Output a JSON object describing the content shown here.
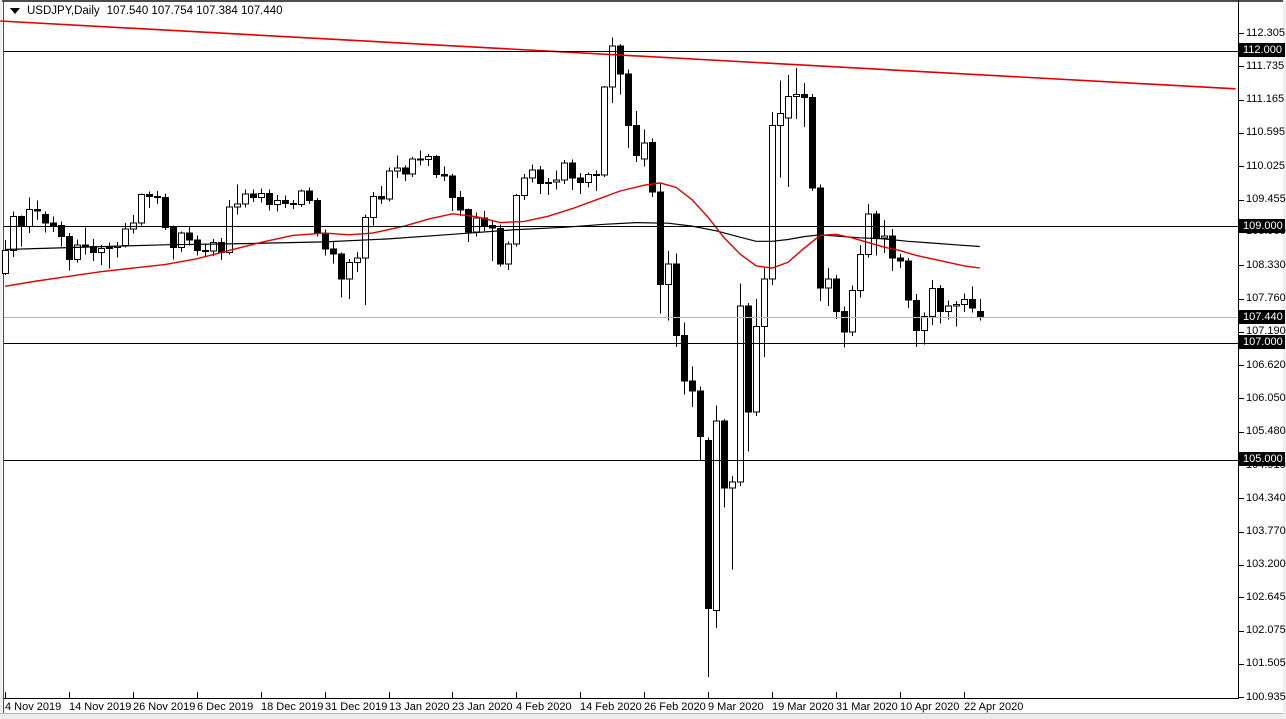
{
  "window": {
    "symbol_period": "USDJPY,Daily",
    "ohlc_line": "107.540 107.754 107.384 107.440"
  },
  "chart_data": {
    "type": "candlestick",
    "symbol": "USDJPY",
    "timeframe": "Daily",
    "title": "USDJPY,Daily",
    "current_bar": {
      "open": "107.540",
      "high": "107.754",
      "low": "107.384",
      "close": "107.440"
    },
    "colors": {
      "bull_body": "#ffffff",
      "bear_body": "#000000",
      "wick": "#000000",
      "ma_fast": "#e00000",
      "ma_slow": "#000000",
      "trendline": "#e00000",
      "current_price_line": "#b8b8b8",
      "level_line": "#000000",
      "level_label_bg": "#000000",
      "level_label_text": "#ffffff",
      "axis_line": "#000000",
      "background": "#ffffff"
    },
    "y_axis": {
      "tick_labels": [
        "112.305",
        "111.735",
        "111.165",
        "110.595",
        "110.025",
        "109.455",
        "108.900",
        "108.330",
        "107.760",
        "107.190",
        "106.620",
        "106.050",
        "105.480",
        "104.910",
        "104.340",
        "103.770",
        "103.200",
        "102.645",
        "102.075",
        "101.505",
        "100.935"
      ],
      "range_top": 112.87,
      "range_bottom": 100.56
    },
    "x_axis": {
      "labels": [
        "4 Nov 2019",
        "14 Nov 2019",
        "26 Nov 2019",
        "6 Dec 2019",
        "18 Dec 2019",
        "31 Dec 2019",
        "13 Jan 2020",
        "23 Jan 2020",
        "4 Feb 2020",
        "14 Feb 2020",
        "26 Feb 2020",
        "9 Mar 2020",
        "19 Mar 2020",
        "31 Mar 2020",
        "10 Apr 2020",
        "22 Apr 2020"
      ],
      "bars_per_tick": 8
    },
    "horizontal_levels": [
      {
        "label": "112.000",
        "price": 112.0
      },
      {
        "label": "109.000",
        "price": 109.0
      },
      {
        "label": "107.000",
        "price": 107.0
      },
      {
        "label": "105.000",
        "price": 105.0
      }
    ],
    "current_price_level": {
      "label": "107.440",
      "price": 107.44
    },
    "trendline": {
      "x_start_bar": -0.6,
      "price_start": 112.51,
      "x_end_bar": 154.0,
      "price_end": 111.35
    },
    "candles": [
      [
        "4 Nov 2019",
        108.19,
        108.76,
        108.16,
        108.58
      ],
      [
        "5 Nov 2019",
        108.58,
        109.25,
        108.47,
        109.16
      ],
      [
        "6 Nov 2019",
        109.16,
        109.18,
        108.65,
        108.99
      ],
      [
        "7 Nov 2019",
        108.99,
        109.49,
        108.88,
        109.28
      ],
      [
        "8 Nov 2019",
        109.28,
        109.44,
        109.1,
        109.26
      ],
      [
        "11 Nov 2019",
        109.2,
        109.25,
        108.89,
        109.05
      ],
      [
        "12 Nov 2019",
        109.05,
        109.16,
        108.9,
        109.01
      ],
      [
        "13 Nov 2019",
        109.01,
        109.08,
        108.65,
        108.82
      ],
      [
        "14 Nov 2019",
        108.82,
        108.88,
        108.24,
        108.43
      ],
      [
        "15 Nov 2019",
        108.43,
        108.77,
        108.38,
        108.68
      ],
      [
        "18 Nov 2019",
        108.68,
        108.98,
        108.51,
        108.65
      ],
      [
        "19 Nov 2019",
        108.65,
        108.78,
        108.4,
        108.55
      ],
      [
        "20 Nov 2019",
        108.55,
        108.68,
        108.33,
        108.62
      ],
      [
        "21 Nov 2019",
        108.62,
        108.72,
        108.27,
        108.63
      ],
      [
        "22 Nov 2019",
        108.63,
        108.73,
        108.46,
        108.66
      ],
      [
        "25 Nov 2019",
        108.67,
        109.05,
        108.63,
        108.95
      ],
      [
        "26 Nov 2019",
        108.95,
        109.19,
        108.87,
        109.05
      ],
      [
        "27 Nov 2019",
        109.05,
        109.56,
        109.01,
        109.54
      ],
      [
        "28 Nov 2019",
        109.54,
        109.59,
        109.31,
        109.51
      ],
      [
        "29 Nov 2019",
        109.51,
        109.6,
        109.38,
        109.49
      ],
      [
        "2 Dec 2019",
        109.49,
        109.56,
        108.93,
        108.98
      ],
      [
        "3 Dec 2019",
        108.98,
        109.01,
        108.43,
        108.63
      ],
      [
        "4 Dec 2019",
        108.63,
        108.91,
        108.56,
        108.88
      ],
      [
        "5 Dec 2019",
        108.88,
        108.99,
        108.67,
        108.76
      ],
      [
        "6 Dec 2019",
        108.76,
        108.84,
        108.5,
        108.58
      ],
      [
        "9 Dec 2019",
        108.58,
        108.7,
        108.47,
        108.57
      ],
      [
        "10 Dec 2019",
        108.57,
        108.78,
        108.49,
        108.72
      ],
      [
        "11 Dec 2019",
        108.72,
        108.8,
        108.42,
        108.55
      ],
      [
        "12 Dec 2019",
        108.55,
        109.45,
        108.51,
        109.33
      ],
      [
        "13 Dec 2019",
        109.33,
        109.71,
        109.2,
        109.38
      ],
      [
        "16 Dec 2019",
        109.38,
        109.63,
        109.32,
        109.55
      ],
      [
        "17 Dec 2019",
        109.55,
        109.63,
        109.41,
        109.49
      ],
      [
        "18 Dec 2019",
        109.49,
        109.64,
        109.4,
        109.56
      ],
      [
        "19 Dec 2019",
        109.56,
        109.63,
        109.27,
        109.37
      ],
      [
        "20 Dec 2019",
        109.37,
        109.53,
        109.25,
        109.44
      ],
      [
        "23 Dec 2019",
        109.44,
        109.52,
        109.31,
        109.39
      ],
      [
        "24 Dec 2019",
        109.39,
        109.45,
        109.29,
        109.37
      ],
      [
        "26 Dec 2019",
        109.37,
        109.63,
        109.33,
        109.6
      ],
      [
        "27 Dec 2019",
        109.6,
        109.66,
        109.38,
        109.44
      ],
      [
        "30 Dec 2019",
        109.44,
        109.48,
        108.82,
        108.87
      ],
      [
        "31 Dec 2019",
        108.87,
        108.94,
        108.5,
        108.61
      ],
      [
        "2 Jan 2020",
        108.61,
        108.73,
        108.36,
        108.52
      ],
      [
        "3 Jan 2020",
        108.52,
        108.55,
        107.78,
        108.09
      ],
      [
        "6 Jan 2020",
        108.09,
        108.44,
        107.75,
        108.38
      ],
      [
        "7 Jan 2020",
        108.38,
        108.56,
        108.21,
        108.45
      ],
      [
        "8 Jan 2020",
        108.45,
        109.2,
        107.65,
        109.15
      ],
      [
        "9 Jan 2020",
        109.15,
        109.58,
        109.01,
        109.51
      ],
      [
        "10 Jan 2020",
        109.51,
        109.69,
        109.38,
        109.46
      ],
      [
        "13 Jan 2020",
        109.46,
        110.0,
        109.42,
        109.94
      ],
      [
        "14 Jan 2020",
        109.94,
        110.21,
        109.82,
        109.99
      ],
      [
        "15 Jan 2020",
        109.99,
        110.04,
        109.77,
        109.89
      ],
      [
        "16 Jan 2020",
        109.89,
        110.18,
        109.84,
        110.15
      ],
      [
        "17 Jan 2020",
        110.15,
        110.29,
        110.04,
        110.14
      ],
      [
        "20 Jan 2020",
        110.14,
        110.23,
        110.03,
        110.19
      ],
      [
        "21 Jan 2020",
        110.19,
        110.22,
        109.82,
        109.88
      ],
      [
        "22 Jan 2020",
        109.88,
        110.02,
        109.77,
        109.86
      ],
      [
        "23 Jan 2020",
        109.86,
        109.89,
        109.26,
        109.49
      ],
      [
        "24 Jan 2020",
        109.49,
        109.6,
        109.17,
        109.28
      ],
      [
        "27 Jan 2020",
        109.28,
        109.3,
        108.73,
        108.9
      ],
      [
        "28 Jan 2020",
        108.9,
        109.23,
        108.82,
        109.14
      ],
      [
        "29 Jan 2020",
        109.14,
        109.26,
        108.92,
        109.01
      ],
      [
        "30 Jan 2020",
        109.01,
        109.1,
        108.4,
        108.97
      ],
      [
        "31 Jan 2020",
        108.96,
        109.03,
        108.31,
        108.35
      ],
      [
        "3 Feb 2020",
        108.35,
        108.74,
        108.25,
        108.69
      ],
      [
        "4 Feb 2020",
        108.69,
        109.55,
        108.65,
        109.52
      ],
      [
        "5 Feb 2020",
        109.52,
        109.89,
        109.45,
        109.82
      ],
      [
        "6 Feb 2020",
        109.82,
        110.05,
        109.75,
        109.96
      ],
      [
        "7 Feb 2020",
        109.96,
        110.03,
        109.55,
        109.73
      ],
      [
        "10 Feb 2020",
        109.73,
        109.82,
        109.53,
        109.75
      ],
      [
        "11 Feb 2020",
        109.75,
        109.95,
        109.63,
        109.79
      ],
      [
        "12 Feb 2020",
        109.79,
        110.13,
        109.72,
        110.08
      ],
      [
        "13 Feb 2020",
        110.08,
        110.14,
        109.62,
        109.82
      ],
      [
        "14 Feb 2020",
        109.82,
        109.91,
        109.55,
        109.75
      ],
      [
        "17 Feb 2020",
        109.75,
        109.92,
        109.66,
        109.88
      ],
      [
        "18 Feb 2020",
        109.88,
        109.95,
        109.6,
        109.87
      ],
      [
        "19 Feb 2020",
        109.87,
        111.4,
        109.84,
        111.38
      ],
      [
        "20 Feb 2020",
        111.38,
        112.23,
        111.11,
        112.08
      ],
      [
        "21 Feb 2020",
        112.08,
        112.12,
        111.25,
        111.6
      ],
      [
        "24 Feb 2020",
        111.6,
        111.68,
        110.34,
        110.72
      ],
      [
        "25 Feb 2020",
        110.72,
        110.97,
        110.1,
        110.21
      ],
      [
        "26 Feb 2020",
        110.15,
        110.65,
        110.02,
        110.42
      ],
      [
        "27 Feb 2020",
        110.43,
        110.5,
        109.5,
        109.58
      ],
      [
        "28 Feb 2020",
        109.58,
        109.72,
        107.5,
        108.0
      ],
      [
        "2 Mar 2020",
        108.0,
        108.57,
        107.38,
        108.35
      ],
      [
        "3 Mar 2020",
        108.35,
        108.53,
        106.93,
        107.13
      ],
      [
        "4 Mar 2020",
        107.13,
        107.35,
        106.12,
        106.35
      ],
      [
        "5 Mar 2020",
        106.35,
        106.6,
        105.9,
        106.18
      ],
      [
        "6 Mar 2020",
        106.18,
        106.25,
        104.98,
        105.4
      ],
      [
        "9 Mar 2020",
        105.33,
        105.38,
        101.28,
        102.45
      ],
      [
        "10 Mar 2020",
        102.42,
        105.93,
        102.12,
        105.66
      ],
      [
        "11 Mar 2020",
        105.66,
        105.7,
        104.18,
        104.52
      ],
      [
        "12 Mar 2020",
        104.52,
        104.72,
        103.12,
        104.62
      ],
      [
        "13 Mar 2020",
        104.62,
        108.02,
        104.55,
        107.63
      ],
      [
        "16 Mar 2020",
        107.63,
        107.68,
        105.14,
        105.82
      ],
      [
        "17 Mar 2020",
        105.82,
        107.75,
        105.75,
        107.28
      ],
      [
        "18 Mar 2020",
        107.28,
        108.28,
        106.76,
        108.09
      ],
      [
        "19 Mar 2020",
        108.09,
        110.95,
        107.99,
        110.72
      ],
      [
        "20 Mar 2020",
        110.72,
        111.49,
        109.83,
        110.93
      ],
      [
        "23 Mar 2020",
        110.85,
        111.59,
        109.67,
        111.22
      ],
      [
        "24 Mar 2020",
        111.22,
        111.71,
        110.83,
        111.25
      ],
      [
        "25 Mar 2020",
        111.25,
        111.45,
        110.7,
        111.2
      ],
      [
        "26 Mar 2020",
        111.2,
        111.26,
        109.6,
        109.65
      ],
      [
        "27 Mar 2020",
        109.65,
        109.71,
        107.72,
        107.94
      ],
      [
        "30 Mar 2020",
        107.94,
        108.28,
        107.63,
        108.09
      ],
      [
        "31 Mar 2020",
        108.09,
        108.16,
        107.41,
        107.54
      ],
      [
        "1 Apr 2020",
        107.54,
        107.62,
        106.92,
        107.19
      ],
      [
        "2 Apr 2020",
        107.19,
        107.98,
        107.12,
        107.9
      ],
      [
        "3 Apr 2020",
        107.9,
        108.68,
        107.78,
        108.51
      ],
      [
        "6 Apr 2020",
        108.51,
        109.38,
        108.46,
        109.21
      ],
      [
        "7 Apr 2020",
        109.21,
        109.26,
        108.5,
        108.8
      ],
      [
        "8 Apr 2020",
        108.8,
        109.1,
        108.54,
        108.83
      ],
      [
        "9 Apr 2020",
        108.83,
        108.95,
        108.23,
        108.45
      ],
      [
        "10 Apr 2020",
        108.45,
        108.52,
        108.28,
        108.4
      ],
      [
        "13 Apr 2020",
        108.4,
        108.45,
        107.6,
        107.73
      ],
      [
        "14 Apr 2020",
        107.73,
        107.84,
        106.93,
        107.21
      ],
      [
        "15 Apr 2020",
        107.21,
        107.52,
        106.97,
        107.45
      ],
      [
        "16 Apr 2020",
        107.45,
        108.08,
        107.31,
        107.93
      ],
      [
        "17 Apr 2020",
        107.93,
        107.99,
        107.33,
        107.54
      ],
      [
        "20 Apr 2020",
        107.54,
        107.73,
        107.4,
        107.63
      ],
      [
        "21 Apr 2020",
        107.63,
        107.72,
        107.28,
        107.66
      ],
      [
        "22 Apr 2020",
        107.66,
        107.85,
        107.53,
        107.74
      ],
      [
        "23 Apr 2020",
        107.74,
        107.97,
        107.52,
        107.6
      ],
      [
        "24 Apr 2020",
        107.54,
        107.754,
        107.384,
        107.44
      ]
    ],
    "ma_fast_points": [
      [
        0,
        107.97
      ],
      [
        4,
        108.06
      ],
      [
        8,
        108.14
      ],
      [
        12,
        108.22
      ],
      [
        16,
        108.28
      ],
      [
        20,
        108.34
      ],
      [
        24,
        108.44
      ],
      [
        28,
        108.58
      ],
      [
        32,
        108.72
      ],
      [
        36,
        108.84
      ],
      [
        40,
        108.88
      ],
      [
        43,
        108.85
      ],
      [
        46,
        108.88
      ],
      [
        50,
        109.0
      ],
      [
        53,
        109.12
      ],
      [
        56,
        109.21
      ],
      [
        59,
        109.16
      ],
      [
        62,
        109.06
      ],
      [
        65,
        109.08
      ],
      [
        68,
        109.17
      ],
      [
        71,
        109.3
      ],
      [
        74,
        109.45
      ],
      [
        77,
        109.6
      ],
      [
        80,
        109.7
      ],
      [
        82,
        109.74
      ],
      [
        84,
        109.66
      ],
      [
        86,
        109.45
      ],
      [
        88,
        109.15
      ],
      [
        90,
        108.8
      ],
      [
        92,
        108.52
      ],
      [
        94,
        108.32
      ],
      [
        96,
        108.28
      ],
      [
        98,
        108.38
      ],
      [
        100,
        108.62
      ],
      [
        102,
        108.84
      ],
      [
        104,
        108.86
      ],
      [
        106,
        108.8
      ],
      [
        108,
        108.72
      ],
      [
        110,
        108.64
      ],
      [
        112,
        108.58
      ],
      [
        114,
        108.5
      ],
      [
        116,
        108.44
      ],
      [
        118,
        108.38
      ],
      [
        120,
        108.32
      ],
      [
        122,
        108.28
      ]
    ],
    "ma_slow_points": [
      [
        0,
        108.6
      ],
      [
        10,
        108.64
      ],
      [
        20,
        108.68
      ],
      [
        30,
        108.7
      ],
      [
        40,
        108.73
      ],
      [
        48,
        108.78
      ],
      [
        56,
        108.86
      ],
      [
        64,
        108.94
      ],
      [
        70,
        108.98
      ],
      [
        75,
        109.03
      ],
      [
        79,
        109.06
      ],
      [
        83,
        109.05
      ],
      [
        86,
        109.0
      ],
      [
        89,
        108.92
      ],
      [
        92,
        108.81
      ],
      [
        94,
        108.74
      ],
      [
        96,
        108.74
      ],
      [
        98,
        108.77
      ],
      [
        100,
        108.82
      ],
      [
        102,
        108.85
      ],
      [
        104,
        108.83
      ],
      [
        107,
        108.8
      ],
      [
        110,
        108.78
      ],
      [
        113,
        108.74
      ],
      [
        116,
        108.71
      ],
      [
        119,
        108.68
      ],
      [
        122,
        108.65
      ]
    ]
  }
}
